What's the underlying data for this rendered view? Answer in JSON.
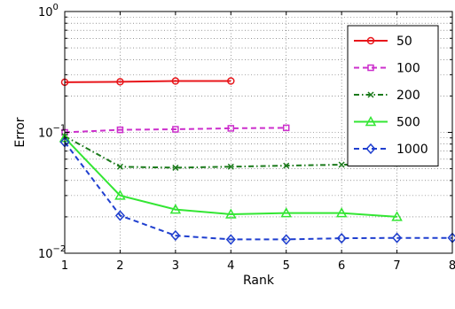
{
  "chart_data": {
    "type": "line",
    "xlabel": "Rank",
    "ylabel": "Error",
    "xlim": [
      1,
      8
    ],
    "ylim": [
      0.01,
      1
    ],
    "yscale": "log",
    "grid": true,
    "legend_placement": "top-right",
    "x_ticks": [
      "1",
      "2",
      "3",
      "4",
      "5",
      "6",
      "7",
      "8"
    ],
    "y_ticks": [
      {
        "value": 1,
        "base": "10",
        "exp": "0"
      },
      {
        "value": 0.1,
        "base": "10",
        "exp": "−1"
      },
      {
        "value": 0.01,
        "base": "10",
        "exp": "−2"
      }
    ],
    "series": [
      {
        "name": "50",
        "color": "#e8161b",
        "dash": "solid",
        "marker": "circle",
        "x": [
          1,
          2,
          3,
          4
        ],
        "y": [
          0.26,
          0.262,
          0.266,
          0.266
        ]
      },
      {
        "name": "100",
        "color": "#cc2fcc",
        "dash": "dashed",
        "marker": "square",
        "x": [
          1,
          2,
          3,
          4,
          5
        ],
        "y": [
          0.1,
          0.105,
          0.106,
          0.108,
          0.109
        ]
      },
      {
        "name": "200",
        "color": "#1b7a1b",
        "dash": "dashdot",
        "marker": "x",
        "x": [
          1,
          2,
          3,
          4,
          5,
          6,
          7
        ],
        "y": [
          0.093,
          0.052,
          0.051,
          0.052,
          0.053,
          0.054,
          0.055
        ]
      },
      {
        "name": "500",
        "color": "#33e633",
        "dash": "solid",
        "marker": "triangle",
        "x": [
          1,
          2,
          3,
          4,
          5,
          6,
          7
        ],
        "y": [
          0.09,
          0.03,
          0.023,
          0.021,
          0.0215,
          0.0215,
          0.02
        ]
      },
      {
        "name": "1000",
        "color": "#1f3fcf",
        "dash": "dashed",
        "marker": "diamond",
        "x": [
          1,
          2,
          3,
          4,
          5,
          6,
          7,
          8
        ],
        "y": [
          0.083,
          0.0205,
          0.014,
          0.013,
          0.013,
          0.0133,
          0.0134,
          0.0134
        ]
      }
    ]
  }
}
